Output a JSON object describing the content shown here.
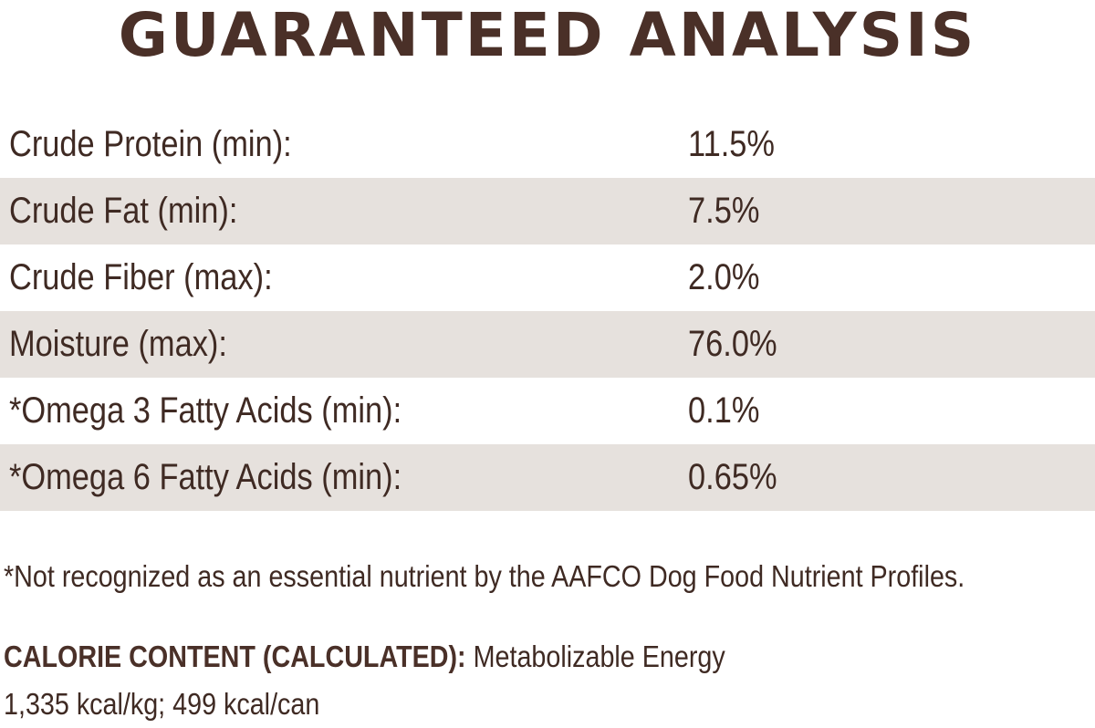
{
  "title": "GUARANTEED ANALYSIS",
  "rows": [
    {
      "label": "Crude Protein (min):",
      "value": "11.5%"
    },
    {
      "label": "Crude Fat (min):",
      "value": "7.5%"
    },
    {
      "label": "Crude Fiber (max):",
      "value": "2.0%"
    },
    {
      "label": "Moisture (max):",
      "value": "76.0%"
    },
    {
      "label": "*Omega 3 Fatty Acids (min):",
      "value": "0.1%"
    },
    {
      "label": "*Omega 6 Fatty Acids (min):",
      "value": "0.65%"
    }
  ],
  "footnote": "*Not recognized as an essential nutrient by the AAFCO Dog Food Nutrient Profiles.",
  "calorie": {
    "heading": "CALORIE CONTENT (CALCULATED):",
    "text": " Metabolizable Energy",
    "values": "1,335 kcal/kg; 499 kcal/can"
  },
  "colors": {
    "text": "#3f2a23",
    "row_shade": "#e6e1dd",
    "background": "#ffffff"
  }
}
